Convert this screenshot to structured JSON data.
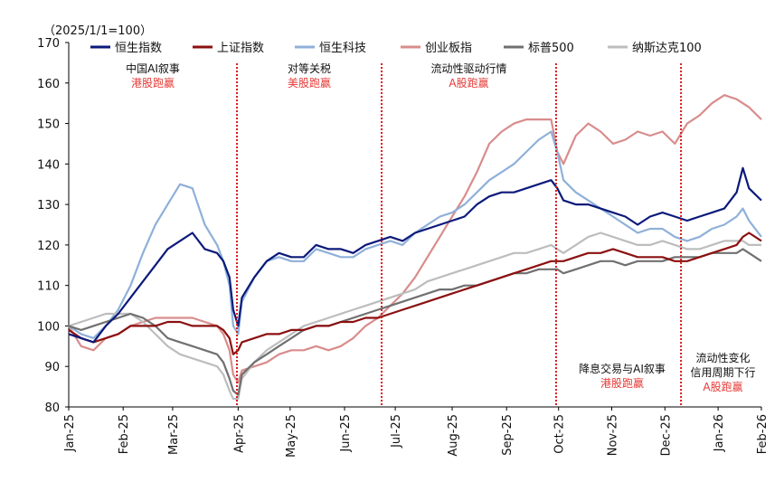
{
  "chart_data": {
    "type": "line",
    "base_label": "（2025/1/1=100）",
    "ylim": [
      80,
      170
    ],
    "yticks": [
      80,
      90,
      100,
      110,
      120,
      130,
      140,
      150,
      160,
      170
    ],
    "xlim": [
      0,
      56
    ],
    "x_tick_labels": [
      "Jan-25",
      "Feb-25",
      "Mar-25",
      "Apr-25",
      "May-25",
      "Jun-25",
      "Jul-25",
      "Aug-25",
      "Sep-25",
      "Oct-25",
      "Nov-25",
      "Dec-25",
      "Jan-26",
      "Feb-26"
    ],
    "x_tick_positions": [
      0,
      4.4,
      8.4,
      13.7,
      17.9,
      22.3,
      26.4,
      31,
      35.4,
      39.6,
      43.9,
      48.2,
      52.5,
      56
    ],
    "series": [
      {
        "name": "恒生指数",
        "color": "#0b1a7a",
        "x": [
          0,
          1,
          2,
          3,
          4,
          5,
          6,
          7,
          8,
          9,
          10,
          11,
          12,
          12.5,
          13,
          13.3,
          13.7,
          14,
          15,
          16,
          17,
          18,
          19,
          20,
          21,
          22,
          23,
          24,
          25,
          26,
          27,
          28,
          29,
          30,
          31,
          32,
          33,
          34,
          35,
          36,
          37,
          38,
          39,
          39.5,
          40,
          41,
          42,
          43,
          44,
          45,
          46,
          47,
          48,
          49,
          50,
          51,
          52,
          53,
          54,
          54.5,
          55,
          56
        ],
        "values": [
          98,
          97,
          96,
          100,
          103,
          107,
          111,
          115,
          119,
          121,
          123,
          119,
          118,
          116,
          112,
          104,
          100,
          107,
          112,
          116,
          118,
          117,
          117,
          120,
          119,
          119,
          118,
          120,
          121,
          122,
          121,
          123,
          124,
          125,
          126,
          127,
          130,
          132,
          133,
          133,
          134,
          135,
          136,
          134,
          131,
          130,
          130,
          129,
          128,
          127,
          125,
          127,
          128,
          127,
          126,
          127,
          128,
          129,
          133,
          139,
          134,
          131
        ]
      },
      {
        "name": "上证指数",
        "color": "#8b1010",
        "x": [
          0,
          1,
          2,
          3,
          4,
          5,
          6,
          7,
          8,
          9,
          10,
          11,
          12,
          12.5,
          13,
          13.3,
          13.7,
          14,
          15,
          16,
          17,
          18,
          19,
          20,
          21,
          22,
          23,
          24,
          25,
          26,
          27,
          28,
          29,
          30,
          31,
          32,
          33,
          34,
          35,
          36,
          37,
          38,
          39,
          39.5,
          40,
          41,
          42,
          43,
          44,
          45,
          46,
          47,
          48,
          49,
          50,
          51,
          52,
          53,
          54,
          54.5,
          55,
          56
        ],
        "values": [
          99,
          97,
          96,
          97,
          98,
          100,
          100,
          100,
          101,
          101,
          100,
          100,
          100,
          99,
          97,
          93,
          94,
          96,
          97,
          98,
          98,
          99,
          99,
          100,
          100,
          101,
          101,
          102,
          102,
          103,
          104,
          105,
          106,
          107,
          108,
          109,
          110,
          111,
          112,
          113,
          114,
          115,
          116,
          116,
          116,
          117,
          118,
          118,
          119,
          118,
          117,
          117,
          117,
          116,
          116,
          117,
          118,
          119,
          120,
          122,
          123,
          121
        ]
      },
      {
        "name": "恒生科技",
        "color": "#8fb0d9",
        "x": [
          0,
          1,
          2,
          3,
          4,
          5,
          6,
          7,
          8,
          9,
          10,
          11,
          12,
          12.5,
          13,
          13.3,
          13.7,
          14,
          15,
          16,
          17,
          18,
          19,
          20,
          21,
          22,
          23,
          24,
          25,
          26,
          27,
          28,
          29,
          30,
          31,
          32,
          33,
          34,
          35,
          36,
          37,
          38,
          39,
          39.5,
          40,
          41,
          42,
          43,
          44,
          45,
          46,
          47,
          48,
          49,
          50,
          51,
          52,
          53,
          54,
          54.5,
          55,
          56
        ],
        "values": [
          100,
          98,
          97,
          100,
          104,
          110,
          118,
          125,
          130,
          135,
          134,
          125,
          120,
          116,
          110,
          100,
          98,
          106,
          112,
          116,
          117,
          116,
          116,
          119,
          118,
          117,
          117,
          119,
          120,
          121,
          120,
          123,
          125,
          127,
          128,
          130,
          133,
          136,
          138,
          140,
          143,
          146,
          148,
          143,
          136,
          133,
          131,
          129,
          127,
          125,
          123,
          124,
          124,
          122,
          121,
          122,
          124,
          125,
          127,
          129,
          126,
          122
        ]
      },
      {
        "name": "创业板指",
        "color": "#d98c8c",
        "x": [
          0,
          1,
          2,
          3,
          4,
          5,
          6,
          7,
          8,
          9,
          10,
          11,
          12,
          12.5,
          13,
          13.3,
          13.7,
          14,
          15,
          16,
          17,
          18,
          19,
          20,
          21,
          22,
          23,
          24,
          25,
          26,
          27,
          28,
          29,
          30,
          31,
          32,
          33,
          34,
          35,
          36,
          37,
          38,
          39,
          39.5,
          40,
          41,
          42,
          43,
          44,
          45,
          46,
          47,
          48,
          49,
          50,
          51,
          52,
          53,
          54,
          54.5,
          55,
          56
        ],
        "values": [
          100,
          95,
          94,
          97,
          98,
          100,
          101,
          102,
          102,
          102,
          102,
          101,
          100,
          98,
          94,
          88,
          86,
          89,
          90,
          91,
          93,
          94,
          94,
          95,
          94,
          95,
          97,
          100,
          102,
          105,
          108,
          112,
          117,
          122,
          127,
          132,
          138,
          145,
          148,
          150,
          151,
          151,
          151,
          143,
          140,
          147,
          150,
          148,
          145,
          146,
          148,
          147,
          148,
          145,
          150,
          152,
          155,
          157,
          156,
          155,
          154,
          151
        ]
      },
      {
        "name": "标普500",
        "color": "#707070",
        "x": [
          0,
          1,
          2,
          3,
          4,
          5,
          6,
          7,
          8,
          9,
          10,
          11,
          12,
          12.5,
          13,
          13.3,
          13.7,
          14,
          15,
          16,
          17,
          18,
          19,
          20,
          21,
          22,
          23,
          24,
          25,
          26,
          27,
          28,
          29,
          30,
          31,
          32,
          33,
          34,
          35,
          36,
          37,
          38,
          39,
          39.5,
          40,
          41,
          42,
          43,
          44,
          45,
          46,
          47,
          48,
          49,
          50,
          51,
          52,
          53,
          54,
          54.5,
          55,
          56
        ],
        "values": [
          100,
          99,
          100,
          101,
          102,
          103,
          102,
          100,
          97,
          96,
          95,
          94,
          93,
          91,
          87,
          84,
          83,
          88,
          91,
          93,
          95,
          97,
          99,
          100,
          100,
          101,
          102,
          103,
          104,
          105,
          106,
          107,
          108,
          109,
          109,
          110,
          110,
          111,
          112,
          113,
          113,
          114,
          114,
          114,
          113,
          114,
          115,
          116,
          116,
          115,
          116,
          116,
          116,
          117,
          117,
          117,
          118,
          118,
          118,
          119,
          118,
          116
        ]
      },
      {
        "name": "纳斯达克100",
        "color": "#bdbdbd",
        "x": [
          0,
          1,
          2,
          3,
          4,
          5,
          6,
          7,
          8,
          9,
          10,
          11,
          12,
          12.5,
          13,
          13.3,
          13.7,
          14,
          15,
          16,
          17,
          18,
          19,
          20,
          21,
          22,
          23,
          24,
          25,
          26,
          27,
          28,
          29,
          30,
          31,
          32,
          33,
          34,
          35,
          36,
          37,
          38,
          39,
          39.5,
          40,
          41,
          42,
          43,
          44,
          45,
          46,
          47,
          48,
          49,
          50,
          51,
          52,
          53,
          54,
          54.5,
          55,
          56
        ],
        "values": [
          100,
          101,
          102,
          103,
          103,
          103,
          101,
          98,
          95,
          93,
          92,
          91,
          90,
          88,
          84,
          82,
          82,
          87,
          91,
          94,
          96,
          98,
          100,
          101,
          102,
          103,
          104,
          105,
          106,
          107,
          108,
          109,
          111,
          112,
          113,
          114,
          115,
          116,
          117,
          118,
          118,
          119,
          120,
          119,
          118,
          120,
          122,
          123,
          122,
          121,
          120,
          120,
          121,
          120,
          119,
          119,
          120,
          121,
          121,
          121,
          120,
          120
        ]
      }
    ],
    "dividers": [
      13.6,
      25.3,
      39.4,
      49.5
    ],
    "annotations": [
      {
        "line1": "中国AI叙事",
        "line2": "港股跑赢"
      },
      {
        "line1": "对等关税",
        "line2": "美股跑赢"
      },
      {
        "line1": "流动性驱动行情",
        "line2": "A股跑赢"
      },
      {
        "line1": "降息交易与AI叙事",
        "line2": "港股跑赢"
      },
      {
        "line1": "流动性变化",
        "line2": "信用周期下行",
        "line3": "A股跑赢"
      }
    ]
  }
}
